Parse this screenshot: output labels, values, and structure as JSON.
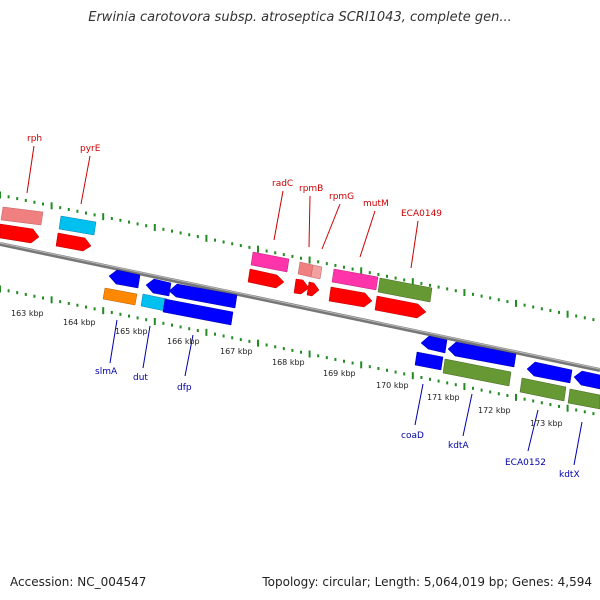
{
  "title": "Erwinia carotovora subsp. atroseptica SCRI1043, complete gen...",
  "footer": {
    "accession": "Accession: NC_004547",
    "topology": "Topology: circular; Length: 5,064,019 bp; Genes: 4,594"
  },
  "colors": {
    "top_label": "#cc0000",
    "bottom_label": "#0000aa",
    "tick": "#228b22",
    "backbone": "#888888"
  },
  "top_genes": [
    "rph",
    "pyrE",
    "radC",
    "rpmB",
    "rpmG",
    "mutM",
    "ECA0149"
  ],
  "bottom_genes": [
    "slmA",
    "dut",
    "dfp",
    "coaD",
    "kdtA",
    "ECA0152",
    "kdtX"
  ],
  "scale_labels": [
    "163 kbp",
    "164 kbp",
    "165 kbp",
    "166 kbp",
    "167 kbp",
    "168 kbp",
    "169 kbp",
    "170 kbp",
    "171 kbp",
    "172 kbp",
    "173 kbp"
  ]
}
